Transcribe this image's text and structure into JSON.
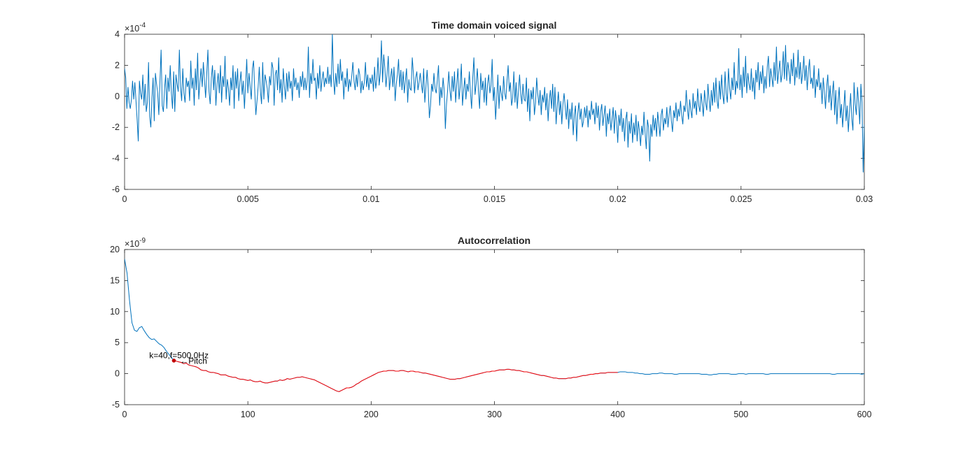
{
  "colors": {
    "background": "#ffffff",
    "axis": "#262626",
    "signal": "#0072bd",
    "segment": "#ff0000",
    "marker": "#c00000"
  },
  "chart_data": [
    {
      "type": "line",
      "title": "Time domain voiced signal",
      "xlabel": "",
      "ylabel": "",
      "xlim": [
        0,
        0.03
      ],
      "ylim": [
        -6,
        4
      ],
      "y_multiplier": "×10^-4",
      "y_exponent_label": "-4",
      "grid": false,
      "xticks": [
        0,
        0.005,
        0.01,
        0.015,
        0.02,
        0.025,
        0.03
      ],
      "xtick_labels": [
        "0",
        "0.005",
        "0.01",
        "0.015",
        "0.02",
        "0.025",
        "0.03"
      ],
      "yticks": [
        -6,
        -4,
        -2,
        0,
        2,
        4
      ],
      "ytick_labels": [
        "-6",
        "-4",
        "-2",
        "0",
        "2",
        "4"
      ],
      "sample_interval": 5e-05,
      "series": [
        {
          "color": "#0072bd",
          "y": [
            1.8,
            1.2,
            -0.8,
            0.6,
            -0.4,
            -0.8,
            -0.2,
            1.0,
            -0.2,
            0.9,
            -0.3,
            -1.5,
            -2.9,
            1.0,
            0.2,
            -0.2,
            1.4,
            -0.6,
            0.8,
            -1.0,
            -0.4,
            2.2,
            -1.3,
            -2.0,
            -0.1,
            1.2,
            -1.6,
            1.5,
            0.8,
            0.2,
            -1.2,
            1.0,
            3.0,
            -0.6,
            -1.0,
            0.5,
            1.4,
            -0.8,
            1.2,
            0.3,
            2.0,
            0.2,
            -0.8,
            1.6,
            -1.0,
            1.4,
            0.8,
            0.3,
            3.0,
            0.6,
            -0.3,
            1.8,
            0.2,
            -0.4,
            1.2,
            0.6,
            1.0,
            -0.3,
            2.3,
            0.5,
            1.2,
            -0.6,
            1.8,
            0.4,
            2.8,
            -0.2,
            0.9,
            1.8,
            0.6,
            2.2,
            1.0,
            -0.1,
            1.5,
            3.0,
            0.3,
            -0.5,
            1.2,
            2.0,
            0.4,
            1.7,
            -0.6,
            0.8,
            1.5,
            0.2,
            2.0,
            -0.4,
            1.3,
            0.6,
            2.6,
            -0.2,
            1.1,
            0.5,
            -0.6,
            1.2,
            0.4,
            2.0,
            -0.8,
            1.6,
            0.5,
            1.8,
            -0.3,
            0.9,
            1.6,
            0.1,
            1.0,
            -0.8,
            0.7,
            2.4,
            0.2,
            1.5,
            0.6,
            -0.2,
            1.8,
            2.3,
            0.4,
            -1.2,
            -0.3,
            0.6,
            1.9,
            0.3,
            -0.5,
            2.2,
            -0.2,
            1.4,
            1.0,
            0.5,
            -0.4,
            1.3,
            0.7,
            2.2,
            1.8,
            -0.6,
            1.4,
            1.7,
            0.4,
            2.5,
            0.2,
            1.1,
            -0.4,
            1.8,
            0.6,
            -0.2,
            1.5,
            0.3,
            1.6,
            0.5,
            1.0,
            -0.3,
            1.8,
            0.6,
            1.2,
            0.4,
            0.9,
            -0.1,
            1.3,
            0.6,
            1.6,
            0.4,
            1.2,
            0.4,
            1.0,
            3.2,
            -0.1,
            1.5,
            0.8,
            2.4,
            1.0,
            1.2,
            -0.2,
            1.5,
            0.5,
            2.0,
            0.3,
            1.1,
            1.6,
            0.6,
            1.2,
            0.8,
            1.9,
            0.8,
            1.4,
            0.6,
            4.0,
            1.2,
            0.1,
            1.5,
            0.6,
            2.1,
            0.8,
            2.4,
            1.0,
            1.6,
            -0.2,
            1.2,
            0.6,
            1.8,
            0.3,
            1.1,
            0.6,
            1.3,
            2.2,
            1.0,
            0.4,
            1.4,
            0.6,
            1.8,
            1.4,
            0.2,
            1.0,
            0.4,
            0.9,
            2.2,
            0.6,
            1.4,
            0.4,
            1.2,
            0.8,
            1.4,
            0.3,
            1.9,
            0.5,
            1.1,
            2.5,
            0.7,
            1.5,
            3.6,
            0.9,
            2.7,
            1.8,
            0.6,
            1.5,
            2.6,
            0.4,
            1.2,
            1.8,
            0.6,
            1.9,
            -0.3,
            0.8,
            1.4,
            2.4,
            0.6,
            1.7,
            0.4,
            1.6,
            0.2,
            1.0,
            1.8,
            -0.4,
            1.1,
            0.5,
            0.4,
            2.5,
            1.5,
            0.2,
            1.2,
            1.6,
            0.4,
            0.9,
            1.5,
            0.8,
            0.2,
            1.8,
            -0.4,
            0.6,
            1.7,
            0.5,
            -1.4,
            -0.6,
            0.8,
            0.3,
            1.5,
            0.5,
            0.2,
            1.1,
            2.0,
            -0.6,
            0.6,
            -0.1,
            1.2,
            0.4,
            -2.1,
            -0.5,
            0.4,
            1.6,
            0.4,
            -0.3,
            1.3,
            0.3,
            1.6,
            -0.4,
            0.8,
            1.8,
            -0.2,
            0.6,
            2.1,
            -0.6,
            0.4,
            1.2,
            -0.2,
            0.8,
            0.3,
            1.6,
            0.2,
            -0.8,
            1.2,
            2.5,
            0.1,
            0.8,
            1.8,
            0.3,
            -0.8,
            1.5,
            0.4,
            1.0,
            -0.4,
            1.2,
            -0.6,
            0.8,
            1.4,
            0.2,
            0.7,
            2.4,
            -0.3,
            0.6,
            -1.5,
            -0.2,
            1.4,
            -0.8,
            0.7,
            0.2,
            -0.3,
            1.3,
            0.2,
            -0.2,
            1.0,
            2.0,
            0.3,
            0.9,
            -0.6,
            -0.1,
            1.6,
            -0.4,
            0.9,
            -0.8,
            0.3,
            1.4,
            0.2,
            -0.5,
            0.8,
            -0.2,
            -0.3,
            1.2,
            -1.0,
            0.5,
            -1.6,
            0.4,
            -0.2,
            0.6,
            -1.2,
            -0.4,
            1.2,
            0.1,
            -0.6,
            0.4,
            -1.2,
            0.1,
            -0.4,
            0.6,
            -0.9,
            0.2,
            -1.6,
            -0.3,
            0.4,
            -0.8,
            0.8,
            -1.0,
            0.6,
            -1.8,
            -0.6,
            0.3,
            -1.2,
            -0.3,
            -1.8,
            -0.5,
            0.2,
            -0.7,
            -1.5,
            -0.2,
            -2.1,
            -0.8,
            -1.5,
            -0.4,
            -2.5,
            -1.2,
            -0.6,
            -2.9,
            -1.1,
            -0.4,
            -1.5,
            -0.8,
            -2.0,
            -1.6,
            -0.7,
            -1.4,
            -0.6,
            -2.0,
            -0.9,
            -1.5,
            -0.3,
            -1.2,
            -0.8,
            -1.8,
            -0.4,
            -1.4,
            -0.6,
            -2.2,
            -1.0,
            -0.5,
            -1.9,
            -1.2,
            -0.6,
            -2.6,
            -1.1,
            -1.8,
            -0.8,
            -2.2,
            -1.5,
            -0.7,
            -2.4,
            -0.9,
            -1.6,
            -3.0,
            -1.2,
            -1.9,
            -0.8,
            -2.3,
            -1.4,
            -2.9,
            -1.5,
            -1.0,
            -3.3,
            -1.6,
            -2.4,
            -1.1,
            -3.0,
            -1.7,
            -2.5,
            -1.2,
            -2.9,
            -1.6,
            -2.2,
            -3.2,
            -1.9,
            -2.5,
            -1.0,
            -2.4,
            -3.4,
            -1.5,
            -2.0,
            -4.2,
            -1.8,
            -2.6,
            -1.2,
            -2.2,
            -1.4,
            -2.6,
            -1.0,
            -1.8,
            -2.6,
            -1.2,
            -0.8,
            -2.2,
            -1.4,
            -1.8,
            -0.7,
            -2.0,
            -1.2,
            -0.6,
            -1.6,
            -2.3,
            -0.9,
            -1.4,
            -0.4,
            -1.6,
            -0.8,
            -1.3,
            -0.3,
            -1.2,
            -1.8,
            -0.6,
            -1.0,
            0.4,
            -0.8,
            -1.5,
            -0.2,
            -0.9,
            -1.4,
            0.2,
            -0.8,
            -0.3,
            -1.2,
            0.5,
            -0.6,
            -1.0,
            0.2,
            -0.5,
            -1.3,
            0.4,
            -0.4,
            -0.9,
            0.8,
            -0.2,
            -1.0,
            0.4,
            -0.6,
            0.9,
            -0.4,
            1.2,
            -0.3,
            -0.8,
            1.0,
            -0.2,
            1.4,
            0.1,
            -0.5,
            1.6,
            0.2,
            -0.4,
            1.8,
            0.5,
            -0.2,
            1.2,
            0.4,
            2.2,
            0.1,
            1.0,
            0.5,
            3.1,
            0.4,
            1.4,
            -0.1,
            1.9,
            0.6,
            2.6,
            0.2,
            1.5,
            0.8,
            0.4,
            1.8,
            0.3,
            1.2,
            -0.2,
            1.7,
            0.9,
            2.2,
            0.4,
            1.6,
            0.8,
            2.0,
            0.2,
            1.3,
            0.5,
            1.9,
            2.6,
            0.6,
            1.8,
            1.2,
            0.6,
            2.2,
            1.0,
            3.2,
            0.8,
            1.6,
            2.3,
            0.9,
            1.4,
            2.9,
            1.1,
            3.3,
            1.0,
            2.2,
            1.6,
            0.8,
            2.4,
            1.3,
            2.8,
            0.7,
            1.9,
            1.2,
            3.0,
            1.1,
            2.2,
            0.8,
            1.5,
            2.6,
            1.0,
            2.0,
            0.4,
            1.6,
            2.4,
            0.8,
            1.2,
            0.5,
            2.0,
            -0.1,
            1.1,
            0.6,
            1.8,
            0.4,
            0.9,
            -0.5,
            1.2,
            0.3,
            -0.8,
            0.6,
            1.4,
            -0.4,
            0.7,
            -0.9,
            0.2,
            1.0,
            -1.2,
            0.4,
            -1.8,
            -0.3,
            0.6,
            -1.4,
            -0.5,
            -2.0,
            -0.8,
            0.4,
            -1.6,
            -0.6,
            -2.3,
            -1.0,
            0.2,
            -1.4,
            -2.2,
            0.9,
            -0.5,
            -1.2,
            0.6,
            -0.4,
            -1.8,
            0.8,
            -0.4,
            -4.9,
            -1.8
          ]
        }
      ]
    },
    {
      "type": "line",
      "title": "Autocorrelation",
      "xlabel": "",
      "ylabel": "",
      "xlim": [
        0,
        600
      ],
      "ylim": [
        -5,
        20
      ],
      "y_multiplier": "×10^-9",
      "y_exponent_label": "-9",
      "grid": false,
      "xticks": [
        0,
        100,
        200,
        300,
        400,
        500,
        600
      ],
      "xtick_labels": [
        "0",
        "100",
        "200",
        "300",
        "400",
        "500",
        "600"
      ],
      "yticks": [
        -5,
        0,
        5,
        10,
        15,
        20
      ],
      "ytick_labels": [
        "-5",
        "0",
        "5",
        "10",
        "15",
        "20"
      ],
      "series": [
        {
          "color": "#0072bd",
          "x_step": 2,
          "y": [
            18.5,
            16.2,
            11.8,
            8.2,
            7.0,
            6.8,
            7.4,
            7.6,
            6.9,
            6.3,
            5.8,
            5.5,
            5.6,
            5.2,
            4.8,
            4.6,
            4.2,
            3.6,
            3.1,
            2.6,
            2.2,
            2.0,
            1.9,
            1.8,
            1.6,
            1.7,
            1.4,
            1.3,
            1.2,
            1.1,
            0.9,
            0.6,
            0.5,
            0.5,
            0.3,
            0.2,
            0.2,
            0.1,
            0.0,
            -0.2,
            -0.2,
            -0.2,
            -0.4,
            -0.5,
            -0.6,
            -0.6,
            -0.8,
            -0.9,
            -0.9,
            -1.0,
            -1.1,
            -1.0,
            -1.2,
            -1.3,
            -1.3,
            -1.2,
            -1.4,
            -1.5,
            -1.5,
            -1.4,
            -1.3,
            -1.2,
            -1.2,
            -1.0,
            -1.1,
            -1.0,
            -0.8,
            -0.9,
            -0.8,
            -0.7,
            -0.6,
            -0.6,
            -0.5,
            -0.6,
            -0.7,
            -0.8,
            -0.9,
            -1.0,
            -1.2,
            -1.4,
            -1.6,
            -1.8,
            -2.0,
            -2.2,
            -2.4,
            -2.6,
            -2.8,
            -2.9,
            -2.7,
            -2.5,
            -2.3,
            -2.3,
            -2.2,
            -2.0,
            -1.7,
            -1.5,
            -1.2,
            -1.0,
            -0.8,
            -0.6,
            -0.4,
            -0.2,
            0.0,
            0.2,
            0.3,
            0.4,
            0.4,
            0.5,
            0.5,
            0.5,
            0.4,
            0.4,
            0.5,
            0.5,
            0.4,
            0.3,
            0.4,
            0.4,
            0.3,
            0.3,
            0.2,
            0.1,
            0.1,
            0.0,
            -0.1,
            -0.2,
            -0.3,
            -0.4,
            -0.5,
            -0.6,
            -0.7,
            -0.8,
            -0.9,
            -0.9,
            -0.9,
            -0.8,
            -0.8,
            -0.7,
            -0.6,
            -0.5,
            -0.4,
            -0.3,
            -0.2,
            -0.1,
            0.0,
            0.1,
            0.2,
            0.3,
            0.3,
            0.4,
            0.4,
            0.5,
            0.6,
            0.6,
            0.6,
            0.7,
            0.7,
            0.6,
            0.6,
            0.5,
            0.5,
            0.4,
            0.3,
            0.3,
            0.2,
            0.1,
            0.0,
            -0.1,
            -0.2,
            -0.3,
            -0.3,
            -0.4,
            -0.5,
            -0.6,
            -0.7,
            -0.7,
            -0.8,
            -0.8,
            -0.8,
            -0.8,
            -0.7,
            -0.7,
            -0.6,
            -0.6,
            -0.5,
            -0.4,
            -0.3,
            -0.3,
            -0.2,
            -0.1,
            -0.1,
            0.0,
            0.0,
            0.1,
            0.1,
            0.1,
            0.2,
            0.2,
            0.2,
            0.2,
            0.2,
            0.3,
            0.3,
            0.3,
            0.2,
            0.2,
            0.2,
            0.1,
            0.1,
            0.0,
            0.0,
            -0.1,
            -0.1,
            -0.1,
            0.0,
            0.0,
            0.0,
            0.1,
            0.1,
            0.0,
            0.0,
            0.0,
            0.0,
            -0.1,
            -0.1,
            0.0,
            0.0,
            0.0,
            0.0,
            0.0,
            0.0,
            0.0,
            0.0,
            0.0,
            -0.1,
            -0.1,
            -0.1,
            -0.2,
            -0.2,
            -0.1,
            -0.1,
            0.0,
            0.0,
            0.0,
            0.0,
            0.0,
            -0.1,
            -0.1,
            -0.1,
            0.0,
            0.0,
            0.0,
            -0.1,
            0.0,
            0.0,
            0.0,
            0.0,
            0.0,
            0.0,
            0.0,
            -0.1,
            -0.1,
            0.0,
            0.0,
            0.0,
            0.0,
            0.0,
            0.0,
            0.0,
            0.0,
            0.0,
            0.0,
            0.0,
            0.0,
            0.0,
            0.0,
            0.0,
            0.0,
            0.0,
            0.0,
            0.0,
            0.0,
            0.0,
            0.0,
            0.0,
            0.0,
            0.0,
            -0.1,
            -0.1,
            0.0,
            0.0,
            0.0,
            0.0,
            0.0,
            0.0,
            0.0,
            0.0,
            0.0,
            0.0,
            -0.1,
            0.0,
            0.0,
            0.0,
            0.0,
            0.0,
            0.0,
            0.0,
            0.0,
            0.0,
            0.0,
            0.0,
            0.0,
            0.0,
            0.0,
            0.0,
            0.0
          ]
        },
        {
          "color": "#ff0000",
          "x_range": [
            40,
            400
          ],
          "note": "highlighted lag range overlays blue trace"
        }
      ],
      "marker": {
        "x": 40,
        "y": 2.1,
        "color": "#c00000"
      },
      "annotations": [
        {
          "text": "k=40,f=500.0Hz",
          "x": 20,
          "y": 2.7
        },
        {
          "text": "←Pitch",
          "x": 45,
          "y": 1.8
        }
      ]
    }
  ]
}
